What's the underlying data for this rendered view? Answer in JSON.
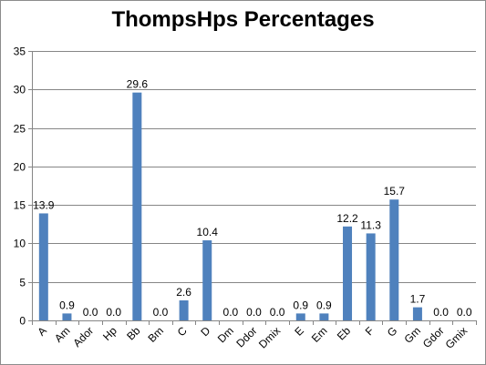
{
  "chart_data": {
    "type": "bar",
    "title": "ThompsHps Percentages",
    "xlabel": "",
    "ylabel": "",
    "categories": [
      "A",
      "Am",
      "Ador",
      "Hp",
      "Bb",
      "Bm",
      "C",
      "D",
      "Dm",
      "Ddor",
      "Dmix",
      "E",
      "Em",
      "Eb",
      "F",
      "G",
      "Gm",
      "Gdor",
      "Gmix"
    ],
    "values": [
      13.9,
      0.9,
      0.0,
      0.0,
      29.6,
      0.0,
      2.6,
      10.4,
      0.0,
      0.0,
      0.0,
      0.9,
      0.9,
      12.2,
      11.3,
      15.7,
      1.7,
      0.0,
      0.0
    ],
    "data_labels": [
      "13.9",
      "0.9",
      "0.0",
      "0.0",
      "29.6",
      "0.0",
      "2.6",
      "10.4",
      "0.0",
      "0.0",
      "0.0",
      "0.9",
      "0.9",
      "12.2",
      "11.3",
      "15.7",
      "1.7",
      "0.0",
      "0.0"
    ],
    "ylim": [
      0,
      35
    ],
    "yticks": [
      "0",
      "5",
      "10",
      "15",
      "20",
      "25",
      "30",
      "35"
    ],
    "grid": true,
    "legend": "none",
    "bar_color": "#4f81bd",
    "grid_color": "#868686"
  }
}
